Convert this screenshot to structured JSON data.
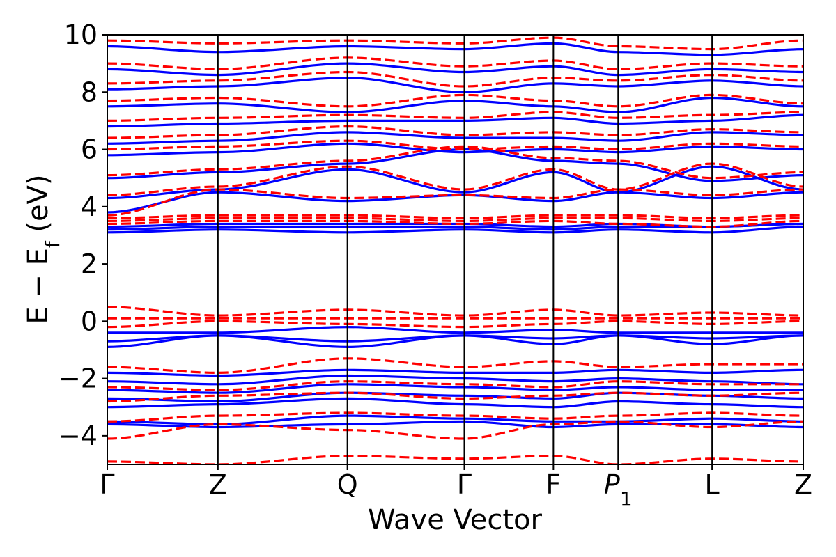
{
  "chart_data": {
    "type": "line",
    "title": "",
    "xlabel": "Wave Vector",
    "ylabel_parts": [
      "E − E",
      "f",
      " (eV)"
    ],
    "ylim": [
      -5,
      10
    ],
    "yticks": [
      -4,
      -2,
      0,
      2,
      4,
      6,
      8,
      10
    ],
    "ytick_labels": [
      "−4",
      "−2",
      "0",
      "2",
      "4",
      "6",
      "8",
      "10"
    ],
    "xlim": [
      0,
      1
    ],
    "kpoints": [
      {
        "label": "Γ",
        "sub": "",
        "italic": false,
        "x": 0.0
      },
      {
        "label": "Z",
        "sub": "",
        "italic": false,
        "x": 0.159
      },
      {
        "label": "Q",
        "sub": "",
        "italic": false,
        "x": 0.345
      },
      {
        "label": "Γ",
        "sub": "",
        "italic": false,
        "x": 0.513
      },
      {
        "label": "F",
        "sub": "",
        "italic": false,
        "x": 0.641
      },
      {
        "label": "P",
        "sub": "1",
        "italic": true,
        "x": 0.734
      },
      {
        "label": "L",
        "sub": "",
        "italic": false,
        "x": 0.869
      },
      {
        "label": "Z",
        "sub": "",
        "italic": false,
        "x": 1.0
      }
    ],
    "grid": false,
    "legend": "none",
    "series": [
      {
        "name": "solid bands",
        "color": "#0000ff",
        "style": "solid",
        "bands": [
          [
            -3.6,
            -3.7,
            -3.6,
            -3.5,
            -3.7,
            -3.6,
            -3.6,
            -3.7
          ],
          [
            -3.5,
            -3.6,
            -3.3,
            -3.4,
            -3.5,
            -3.5,
            -3.4,
            -3.5
          ],
          [
            -3.0,
            -2.9,
            -2.7,
            -2.9,
            -3.0,
            -2.8,
            -2.9,
            -3.0
          ],
          [
            -2.7,
            -2.8,
            -2.5,
            -2.6,
            -2.7,
            -2.5,
            -2.6,
            -2.7
          ],
          [
            -2.4,
            -2.5,
            -2.2,
            -2.3,
            -2.4,
            -2.3,
            -2.4,
            -2.4
          ],
          [
            -2.1,
            -2.2,
            -1.9,
            -2.0,
            -2.1,
            -2.0,
            -2.1,
            -2.2
          ],
          [
            -1.8,
            -1.9,
            -1.7,
            -1.8,
            -1.8,
            -1.7,
            -1.8,
            -1.7
          ],
          [
            -0.9,
            -0.5,
            -0.9,
            -0.5,
            -0.8,
            -0.5,
            -0.8,
            -0.5
          ],
          [
            -0.7,
            -0.5,
            -0.7,
            -0.5,
            -0.6,
            -0.5,
            -0.6,
            -0.5
          ],
          [
            -0.4,
            -0.4,
            -0.2,
            -0.4,
            -0.3,
            -0.4,
            -0.4,
            -0.4
          ],
          [
            3.1,
            3.2,
            3.1,
            3.2,
            3.1,
            3.2,
            3.1,
            3.3
          ],
          [
            3.2,
            3.3,
            3.3,
            3.3,
            3.2,
            3.3,
            3.3,
            3.4
          ],
          [
            3.3,
            3.4,
            3.4,
            3.4,
            3.3,
            3.4,
            3.3,
            3.4
          ],
          [
            3.8,
            4.5,
            4.2,
            4.4,
            4.2,
            4.5,
            4.3,
            4.5
          ],
          [
            4.3,
            4.6,
            5.3,
            4.5,
            5.2,
            4.5,
            5.4,
            4.6
          ],
          [
            5.0,
            5.2,
            5.5,
            6.0,
            5.6,
            5.5,
            4.9,
            5.1
          ],
          [
            5.8,
            5.9,
            6.2,
            5.9,
            6.0,
            5.9,
            6.1,
            6.0
          ],
          [
            6.2,
            6.3,
            6.6,
            6.4,
            6.4,
            6.3,
            6.6,
            6.5
          ],
          [
            6.8,
            6.9,
            7.0,
            7.0,
            7.1,
            6.9,
            7.0,
            7.2
          ],
          [
            7.5,
            7.6,
            7.3,
            7.7,
            7.5,
            7.3,
            7.8,
            7.5
          ],
          [
            8.1,
            8.2,
            8.5,
            8.0,
            8.3,
            8.2,
            8.4,
            8.2
          ],
          [
            8.8,
            8.6,
            9.0,
            8.7,
            8.9,
            8.6,
            8.8,
            8.7
          ],
          [
            9.6,
            9.4,
            9.6,
            9.5,
            9.7,
            9.4,
            9.3,
            9.5
          ]
        ]
      },
      {
        "name": "dashed bands",
        "color": "#ff0000",
        "style": "dashed",
        "bands": [
          [
            -4.9,
            -5.0,
            -4.7,
            -4.8,
            -4.7,
            -5.0,
            -4.8,
            -4.9
          ],
          [
            -4.1,
            -3.6,
            -3.8,
            -4.1,
            -3.6,
            -3.5,
            -3.7,
            -3.5
          ],
          [
            -3.5,
            -3.3,
            -3.2,
            -3.3,
            -3.4,
            -3.3,
            -3.2,
            -3.3
          ],
          [
            -2.8,
            -2.6,
            -2.5,
            -2.7,
            -2.6,
            -2.5,
            -2.6,
            -2.5
          ],
          [
            -2.3,
            -2.4,
            -2.1,
            -2.2,
            -2.3,
            -2.1,
            -2.2,
            -2.2
          ],
          [
            -1.6,
            -1.8,
            -1.3,
            -1.6,
            -1.4,
            -1.6,
            -1.5,
            -1.5
          ],
          [
            0.1,
            0.1,
            0.1,
            0.1,
            0.1,
            0.1,
            0.1,
            0.1
          ],
          [
            0.5,
            0.2,
            0.4,
            0.2,
            0.4,
            0.2,
            0.3,
            0.2
          ],
          [
            -0.2,
            0.0,
            -0.1,
            -0.2,
            -0.1,
            0.0,
            -0.1,
            0.0
          ],
          [
            3.4,
            3.5,
            3.5,
            3.4,
            3.5,
            3.4,
            3.3,
            3.5
          ],
          [
            3.5,
            3.6,
            3.6,
            3.5,
            3.6,
            3.6,
            3.5,
            3.6
          ],
          [
            3.6,
            3.7,
            3.7,
            3.6,
            3.7,
            3.7,
            3.6,
            3.7
          ],
          [
            3.7,
            4.6,
            4.3,
            4.4,
            4.3,
            4.6,
            4.4,
            4.6
          ],
          [
            4.4,
            4.7,
            5.4,
            4.6,
            5.3,
            4.6,
            5.5,
            4.7
          ],
          [
            5.1,
            5.3,
            5.6,
            6.1,
            5.7,
            5.6,
            5.0,
            5.2
          ],
          [
            6.0,
            6.1,
            6.3,
            6.0,
            6.1,
            6.0,
            6.2,
            6.1
          ],
          [
            6.4,
            6.5,
            6.8,
            6.5,
            6.6,
            6.5,
            6.7,
            6.6
          ],
          [
            7.0,
            7.1,
            7.2,
            7.1,
            7.3,
            7.1,
            7.2,
            7.3
          ],
          [
            7.7,
            7.8,
            7.5,
            7.9,
            7.7,
            7.5,
            7.9,
            7.6
          ],
          [
            8.3,
            8.4,
            8.7,
            8.2,
            8.5,
            8.4,
            8.6,
            8.4
          ],
          [
            9.0,
            8.8,
            9.2,
            8.9,
            9.1,
            8.8,
            9.0,
            8.9
          ],
          [
            9.8,
            9.7,
            9.8,
            9.7,
            9.9,
            9.6,
            9.5,
            9.8
          ]
        ]
      }
    ]
  }
}
